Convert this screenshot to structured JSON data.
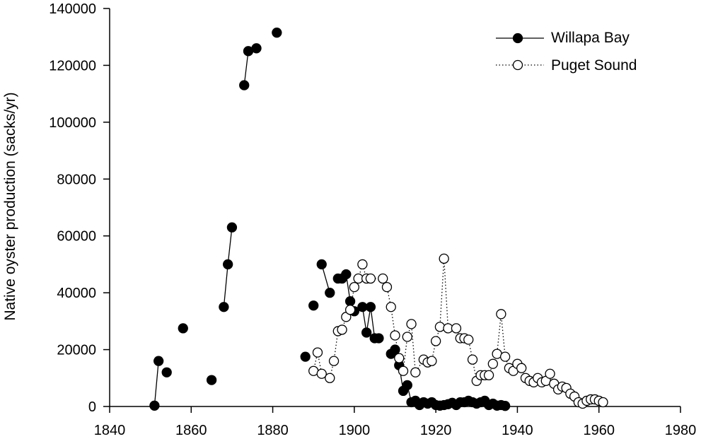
{
  "chart_data": {
    "type": "scatter",
    "title": "",
    "xlabel": "",
    "ylabel": "Native oyster production (sacks/yr)",
    "xlim": [
      1840,
      1980
    ],
    "ylim": [
      0,
      140000
    ],
    "x_ticks": [
      1840,
      1860,
      1880,
      1900,
      1920,
      1940,
      1960,
      1980
    ],
    "y_ticks": [
      0,
      20000,
      40000,
      60000,
      80000,
      100000,
      120000,
      140000
    ],
    "x_tick_labels": [
      "1840",
      "1860",
      "1880",
      "1900",
      "1920",
      "1940",
      "1960",
      "1980"
    ],
    "y_tick_labels": [
      "0",
      "20000",
      "40000",
      "60000",
      "80000",
      "100000",
      "120000",
      "140000"
    ],
    "grid": false,
    "legend_position": "top-right",
    "colors": {
      "willapa_marker": "#000000",
      "puget_marker_fill": "#ffffff",
      "puget_marker_stroke": "#000000",
      "line": "#000000"
    },
    "series": [
      {
        "name": "Willapa Bay",
        "marker": "filled-circle",
        "line": "solid",
        "segments": [
          [
            [
              1851,
              300
            ],
            [
              1852,
              16000
            ]
          ],
          [
            [
              1854,
              12000
            ]
          ],
          [
            [
              1858,
              27500
            ]
          ],
          [
            [
              1865,
              9300
            ]
          ],
          [
            [
              1868,
              35000
            ],
            [
              1869,
              50000
            ],
            [
              1870,
              63000
            ]
          ],
          [
            [
              1873,
              113000
            ],
            [
              1874,
              125000
            ],
            [
              1876,
              126000
            ]
          ],
          [
            [
              1881,
              131500
            ]
          ],
          [
            [
              1888,
              17500
            ]
          ],
          [
            [
              1890,
              35500
            ]
          ],
          [
            [
              1892,
              50000
            ],
            [
              1894,
              40000
            ]
          ],
          [
            [
              1896,
              45000
            ],
            [
              1897,
              45000
            ],
            [
              1898,
              46500
            ],
            [
              1899,
              37000
            ],
            [
              1900,
              33500
            ],
            [
              1902,
              35000
            ],
            [
              1903,
              26000
            ],
            [
              1904,
              35000
            ],
            [
              1905,
              24000
            ],
            [
              1906,
              24000
            ]
          ],
          [
            [
              1909,
              18500
            ],
            [
              1910,
              20000
            ],
            [
              1911,
              14500
            ],
            [
              1912,
              5500
            ],
            [
              1913,
              7500
            ],
            [
              1914,
              1500
            ],
            [
              1915,
              2000
            ],
            [
              1916,
              500
            ],
            [
              1917,
              1500
            ],
            [
              1918,
              1000
            ],
            [
              1919,
              1500
            ],
            [
              1920,
              500
            ],
            [
              1921,
              300
            ],
            [
              1922,
              500
            ],
            [
              1923,
              800
            ],
            [
              1924,
              1300
            ],
            [
              1925,
              500
            ],
            [
              1926,
              1500
            ],
            [
              1927,
              1500
            ],
            [
              1928,
              2000
            ],
            [
              1929,
              1500
            ],
            [
              1930,
              1000
            ],
            [
              1931,
              1500
            ],
            [
              1932,
              2000
            ],
            [
              1933,
              500
            ],
            [
              1934,
              1000
            ],
            [
              1935,
              300
            ],
            [
              1936,
              500
            ],
            [
              1937,
              200
            ]
          ]
        ]
      },
      {
        "name": "Puget Sound",
        "marker": "open-circle",
        "line": "dotted",
        "segments": [
          [
            [
              1890,
              12500
            ],
            [
              1891,
              19000
            ],
            [
              1892,
              11500
            ],
            [
              1894,
              10000
            ],
            [
              1895,
              16000
            ],
            [
              1896,
              26500
            ],
            [
              1897,
              27000
            ],
            [
              1898,
              31500
            ],
            [
              1899,
              34000
            ],
            [
              1900,
              42000
            ],
            [
              1901,
              45000
            ],
            [
              1902,
              50000
            ],
            [
              1903,
              45000
            ],
            [
              1904,
              45000
            ],
            [
              1907,
              45000
            ],
            [
              1908,
              42000
            ],
            [
              1909,
              35000
            ],
            [
              1910,
              25000
            ],
            [
              1911,
              17000
            ],
            [
              1912,
              12500
            ],
            [
              1913,
              24500
            ],
            [
              1914,
              29000
            ],
            [
              1915,
              12000
            ],
            [
              1917,
              16500
            ],
            [
              1918,
              15500
            ],
            [
              1919,
              16000
            ],
            [
              1920,
              23000
            ],
            [
              1921,
              28000
            ],
            [
              1922,
              52000
            ],
            [
              1923,
              27500
            ],
            [
              1925,
              27500
            ],
            [
              1926,
              24000
            ],
            [
              1927,
              24000
            ],
            [
              1928,
              23500
            ],
            [
              1929,
              16500
            ],
            [
              1930,
              9000
            ],
            [
              1931,
              11000
            ],
            [
              1932,
              11000
            ],
            [
              1933,
              11000
            ],
            [
              1934,
              15000
            ],
            [
              1935,
              18500
            ],
            [
              1936,
              32500
            ],
            [
              1937,
              17500
            ],
            [
              1938,
              13500
            ],
            [
              1939,
              12500
            ],
            [
              1940,
              15000
            ],
            [
              1941,
              13500
            ],
            [
              1942,
              10000
            ],
            [
              1943,
              9000
            ],
            [
              1944,
              8500
            ],
            [
              1945,
              10000
            ],
            [
              1946,
              8500
            ],
            [
              1947,
              9000
            ],
            [
              1948,
              11500
            ],
            [
              1949,
              8000
            ],
            [
              1950,
              6000
            ],
            [
              1951,
              7000
            ],
            [
              1952,
              6500
            ],
            [
              1953,
              4500
            ],
            [
              1954,
              3500
            ],
            [
              1955,
              1500
            ],
            [
              1956,
              1000
            ],
            [
              1957,
              2000
            ],
            [
              1958,
              2500
            ],
            [
              1959,
              2500
            ],
            [
              1960,
              2000
            ],
            [
              1961,
              1500
            ]
          ]
        ]
      }
    ]
  }
}
